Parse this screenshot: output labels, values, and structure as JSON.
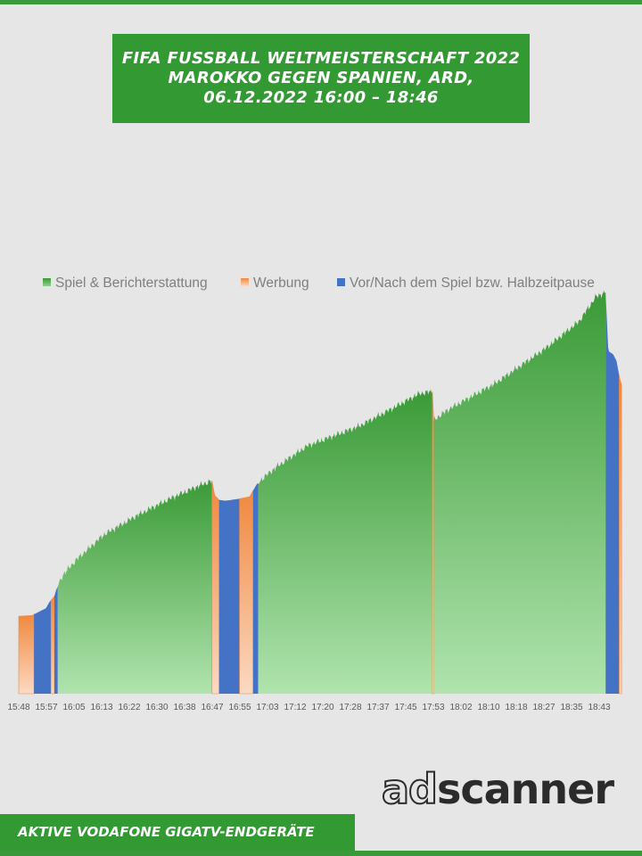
{
  "header": {
    "title_line1": "FIFA FUSSBALL WELTMEISTERSCHAFT 2022",
    "title_line2": "MAROKKO GEGEN SPANIEN, ARD,",
    "title_line3": "06.12.2022  16:00 – 18:46"
  },
  "footer": {
    "label": "AKTIVE VODAFONE GIGATV-ENDGERÄTE"
  },
  "logo": {
    "part1": "ad",
    "part2": "scanner"
  },
  "colors": {
    "spiel": "#3a9a36",
    "spiel_light": "#b0e4ae",
    "werbung": "#f0883e",
    "werbung_light": "#fcd9c2",
    "pause": "#4472c4"
  },
  "chart_data": {
    "type": "area",
    "title": "",
    "xlabel": "",
    "ylabel": "",
    "y_axis_visible": false,
    "grid": false,
    "legend_position": "top",
    "x_range_minutes": [
      0,
      178
    ],
    "y_range_relative": [
      0,
      100
    ],
    "x_tick_labels": [
      "15:48",
      "15:57",
      "16:05",
      "16:13",
      "16:22",
      "16:30",
      "16:38",
      "16:47",
      "16:55",
      "17:03",
      "17:12",
      "17:20",
      "17:28",
      "17:37",
      "17:45",
      "17:53",
      "18:02",
      "18:10",
      "18:18",
      "18:27",
      "18:35",
      "18:43"
    ],
    "legend": [
      {
        "key": "spiel",
        "label": "Spiel & Berichterstattung"
      },
      {
        "key": "werbung",
        "label": "Werbung"
      },
      {
        "key": "pause",
        "label": "Vor/Nach dem Spiel bzw. Halbzeitpause"
      }
    ],
    "curve": [
      [
        0,
        19.3
      ],
      [
        4,
        19.5
      ],
      [
        4.5,
        19.8
      ],
      [
        8,
        21.3
      ],
      [
        9,
        22.8
      ],
      [
        10.5,
        24.3
      ],
      [
        11,
        25.8
      ],
      [
        13,
        29.6
      ],
      [
        17,
        33.4
      ],
      [
        25,
        39.6
      ],
      [
        35,
        44.5
      ],
      [
        45,
        48.8
      ],
      [
        53,
        51.8
      ],
      [
        56.9,
        53.1
      ],
      [
        57.7,
        49.4
      ],
      [
        59,
        48.3
      ],
      [
        61,
        48.1
      ],
      [
        65,
        48.6
      ],
      [
        68,
        49.1
      ],
      [
        70,
        52.1
      ],
      [
        72,
        53.8
      ],
      [
        76,
        56.6
      ],
      [
        85,
        61.8
      ],
      [
        100,
        66.6
      ],
      [
        110,
        71.1
      ],
      [
        118,
        74.8
      ],
      [
        121.8,
        75.3
      ],
      [
        122.2,
        67.9
      ],
      [
        122.8,
        68.6
      ],
      [
        127,
        71.1
      ],
      [
        140,
        77.2
      ],
      [
        155,
        86.0
      ],
      [
        165,
        92.8
      ],
      [
        170,
        99.0
      ],
      [
        172.8,
        100.0
      ],
      [
        173.6,
        85.4
      ],
      [
        175,
        84.6
      ],
      [
        176,
        83.0
      ],
      [
        177,
        78.4
      ],
      [
        177.5,
        77.0
      ]
    ],
    "segments": [
      {
        "type": "werbung",
        "start": 0,
        "end": 4.5
      },
      {
        "type": "pause",
        "start": 4.5,
        "end": 9.5
      },
      {
        "type": "werbung",
        "start": 9.5,
        "end": 10.5
      },
      {
        "type": "pause",
        "start": 10.5,
        "end": 11.5
      },
      {
        "type": "spiel",
        "start": 11.5,
        "end": 56.9
      },
      {
        "type": "werbung",
        "start": 56.9,
        "end": 59
      },
      {
        "type": "pause",
        "start": 59,
        "end": 65
      },
      {
        "type": "werbung",
        "start": 65,
        "end": 69
      },
      {
        "type": "pause",
        "start": 69,
        "end": 70.5
      },
      {
        "type": "spiel",
        "start": 70.5,
        "end": 121.8
      },
      {
        "type": "werbung",
        "start": 121.8,
        "end": 122.2
      },
      {
        "type": "spiel",
        "start": 122.2,
        "end": 172.8
      },
      {
        "type": "pause",
        "start": 172.8,
        "end": 176.8
      },
      {
        "type": "werbung",
        "start": 176.8,
        "end": 177.5
      }
    ]
  }
}
